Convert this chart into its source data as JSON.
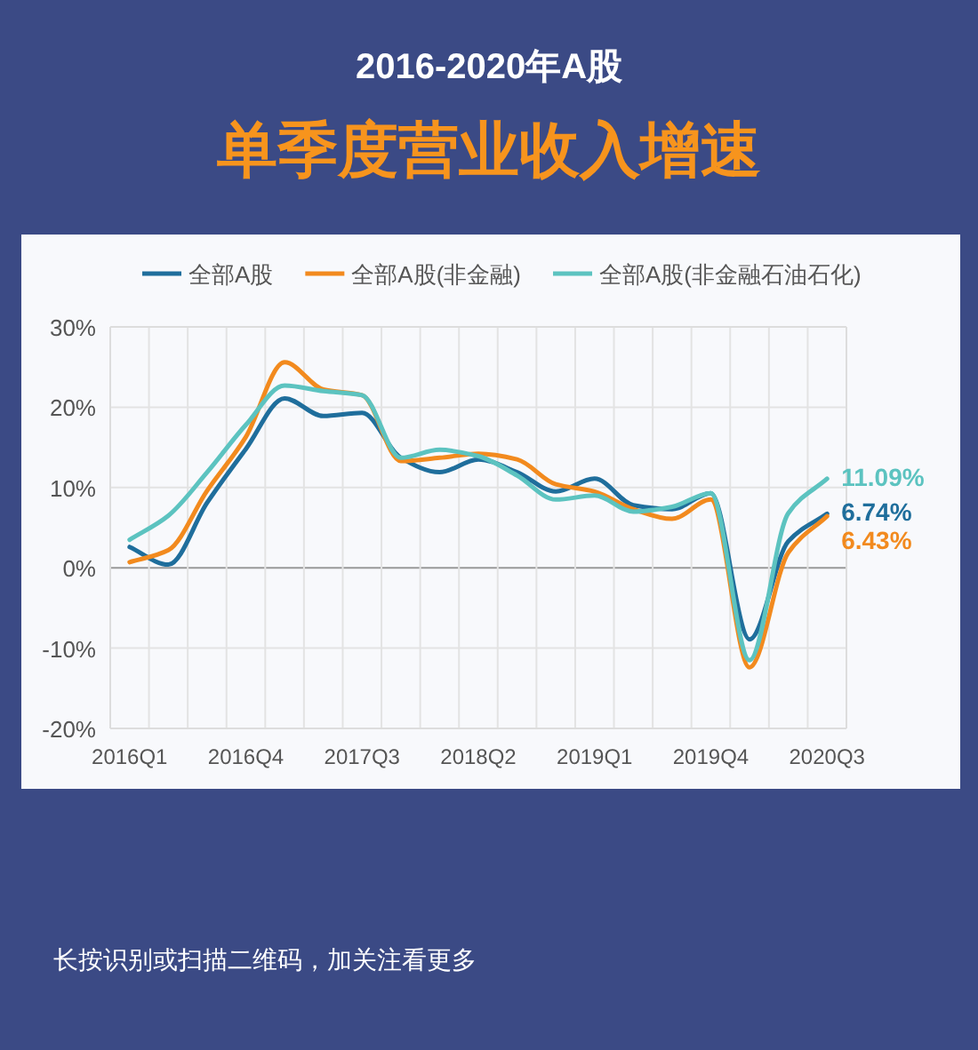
{
  "chart_data": {
    "type": "line",
    "title": "2016-2020年A股",
    "subtitle": "单季度营业收入增速",
    "categories": [
      "2016Q1",
      null,
      null,
      "2016Q4",
      null,
      null,
      "2017Q3",
      null,
      null,
      "2018Q2",
      null,
      null,
      "2019Q1",
      null,
      null,
      "2019Q4",
      null,
      null,
      "2020Q3"
    ],
    "series": [
      {
        "name": "全部A股",
        "color": "#1f6e9c",
        "values": [
          2.6,
          0.4,
          8.1,
          14.8,
          21.1,
          18.9,
          19.3,
          13.7,
          11.9,
          13.5,
          11.9,
          9.5,
          11.1,
          7.8,
          7.3,
          9.3,
          -8.9,
          3.3,
          6.74
        ],
        "value_labels": [
          null,
          null,
          null,
          null,
          null,
          null,
          null,
          null,
          null,
          null,
          null,
          null,
          null,
          null,
          null,
          null,
          null,
          null,
          "6.74%"
        ]
      },
      {
        "name": "全部A股(非金融)",
        "color": "#f28a1e",
        "values": [
          0.7,
          2.2,
          9.6,
          16.3,
          25.6,
          22.2,
          21.5,
          13.3,
          13.7,
          14.2,
          13.5,
          10.4,
          9.5,
          7.3,
          6.1,
          8.5,
          -12.4,
          1.9,
          6.43
        ],
        "value_labels": [
          null,
          null,
          null,
          null,
          null,
          null,
          null,
          null,
          null,
          null,
          null,
          null,
          null,
          null,
          null,
          null,
          null,
          null,
          "6.43%"
        ]
      },
      {
        "name": "全部A股(非金融石油石化)",
        "color": "#5cc3c0",
        "values": [
          3.5,
          6.5,
          11.9,
          17.8,
          22.7,
          22.0,
          21.5,
          13.7,
          14.7,
          13.9,
          11.5,
          8.5,
          9.0,
          7.0,
          7.6,
          9.3,
          -11.5,
          6.8,
          11.09
        ],
        "value_labels": [
          null,
          null,
          null,
          null,
          null,
          null,
          null,
          null,
          null,
          null,
          null,
          null,
          null,
          null,
          null,
          null,
          null,
          null,
          "11.09%"
        ]
      }
    ],
    "ylim": [
      -20,
      30
    ],
    "yticks": [
      {
        "value": -20,
        "label": "-20%"
      },
      {
        "value": -10,
        "label": "-10%"
      },
      {
        "value": 0,
        "label": "0%"
      },
      {
        "value": 10,
        "label": "10%"
      },
      {
        "value": 20,
        "label": "20%"
      },
      {
        "value": 30,
        "label": "30%"
      }
    ],
    "grid": true,
    "legend": "top",
    "marker": "none",
    "line_style": "solid",
    "annotations": [
      "长按识别或扫描二维码，加关注看更多"
    ]
  }
}
